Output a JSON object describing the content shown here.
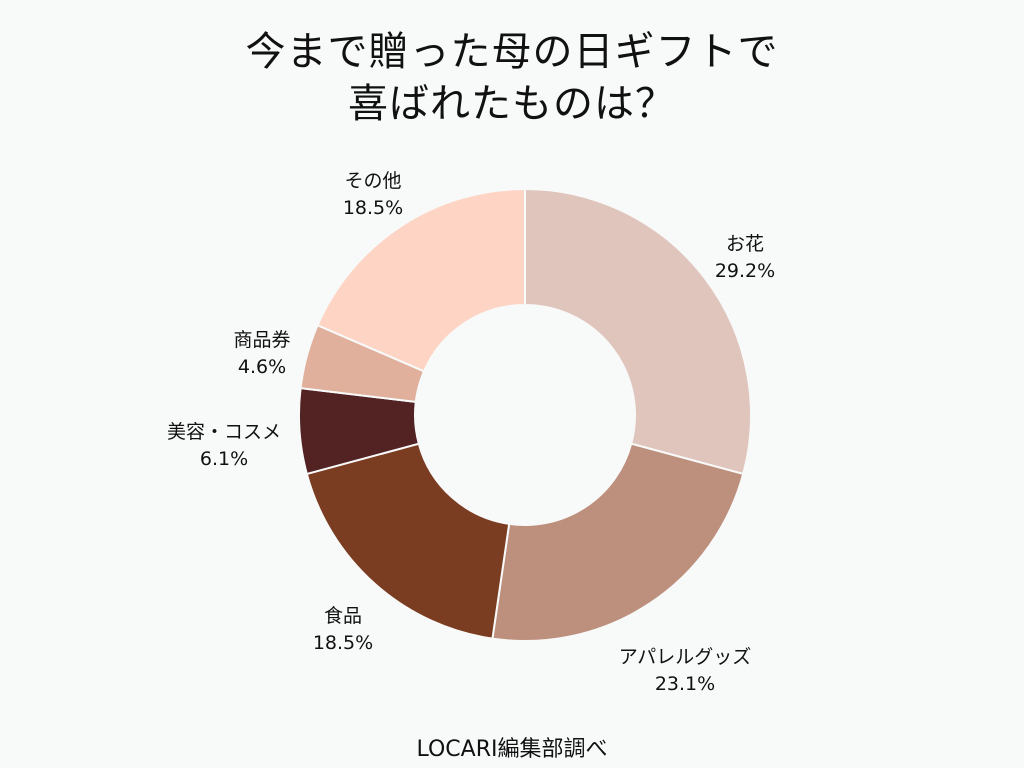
{
  "title_line1": "今まで贈った母の日ギフトで",
  "title_line2": "喜ばれたものは？",
  "source": "LOCARI編集部調べ",
  "chart_data": {
    "type": "pie",
    "donut": true,
    "title": "今まで贈った母の日ギフトで喜ばれたものは？",
    "start": "12 o'clock",
    "direction": "clockwise",
    "slices": [
      {
        "label": "お花",
        "value": 29.2,
        "value_text": "29.2%",
        "color": "#e0c5bd"
      },
      {
        "label": "アパレルグッズ",
        "value": 23.1,
        "value_text": "23.1%",
        "color": "#bd8f7d"
      },
      {
        "label": "食品",
        "value": 18.5,
        "value_text": "18.5%",
        "color": "#7a3d22"
      },
      {
        "label": "美容・コスメ",
        "value": 6.1,
        "value_text": "6.1%",
        "color": "#532222"
      },
      {
        "label": "商品券",
        "value": 4.6,
        "value_text": "4.6%",
        "color": "#e0b09c"
      },
      {
        "label": "その他",
        "value": 18.5,
        "value_text": "18.5%",
        "color": "#fed5c5"
      }
    ]
  }
}
